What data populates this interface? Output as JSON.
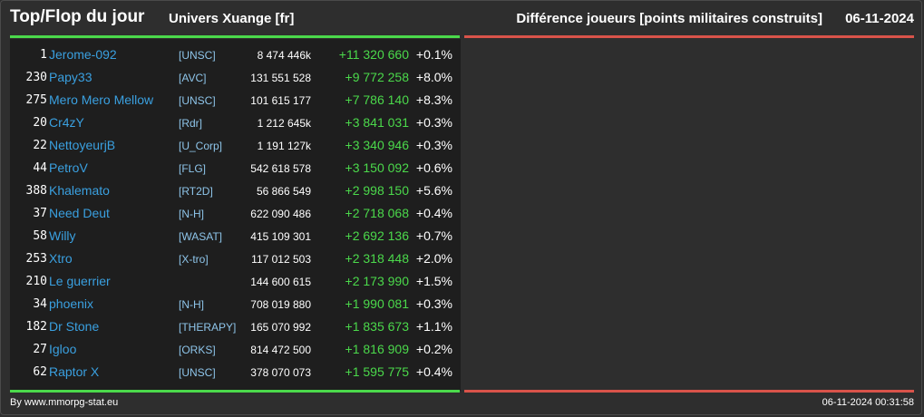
{
  "header": {
    "title": "Top/Flop du jour",
    "universe": "Univers Xuange [fr]",
    "metric": "Différence joueurs [points militaires construits]",
    "date": "06-11-2024"
  },
  "colors": {
    "background": "#2e2e2e",
    "panel": "#1e1e1e",
    "top_accent": "#4bd94b",
    "flop_accent": "#d9534a",
    "player_link": "#3aa0e0",
    "alliance_link": "#8ec5ea"
  },
  "top_rows": [
    {
      "rank": "1",
      "name": "Jerome-092",
      "alliance": "[UNSC]",
      "points": "8 474 446k",
      "delta": "+11 320 660",
      "pct": "+0.1%"
    },
    {
      "rank": "230",
      "name": "Papy33",
      "alliance": "[AVC]",
      "points": "131 551 528",
      "delta": "+9 772 258",
      "pct": "+8.0%"
    },
    {
      "rank": "275",
      "name": "Mero Mero Mellow",
      "alliance": "[UNSC]",
      "points": "101 615 177",
      "delta": "+7 786 140",
      "pct": "+8.3%"
    },
    {
      "rank": "20",
      "name": "Cr4zY",
      "alliance": "[Rdr]",
      "points": "1 212 645k",
      "delta": "+3 841 031",
      "pct": "+0.3%"
    },
    {
      "rank": "22",
      "name": "NettoyeurjB",
      "alliance": "[U_Corp]",
      "points": "1 191 127k",
      "delta": "+3 340 946",
      "pct": "+0.3%"
    },
    {
      "rank": "44",
      "name": "PetroV",
      "alliance": "[FLG]",
      "points": "542 618 578",
      "delta": "+3 150 092",
      "pct": "+0.6%"
    },
    {
      "rank": "388",
      "name": "Khalemato",
      "alliance": "[RT2D]",
      "points": "56 866 549",
      "delta": "+2 998 150",
      "pct": "+5.6%"
    },
    {
      "rank": "37",
      "name": "Need Deut",
      "alliance": "[N-H]",
      "points": "622 090 486",
      "delta": "+2 718 068",
      "pct": "+0.4%"
    },
    {
      "rank": "58",
      "name": "Willy",
      "alliance": "[WASAT]",
      "points": "415 109 301",
      "delta": "+2 692 136",
      "pct": "+0.7%"
    },
    {
      "rank": "253",
      "name": "Xtro",
      "alliance": "[X-tro]",
      "points": "117 012 503",
      "delta": "+2 318 448",
      "pct": "+2.0%"
    },
    {
      "rank": "210",
      "name": "Le guerrier",
      "alliance": "",
      "points": "144 600 615",
      "delta": "+2 173 990",
      "pct": "+1.5%"
    },
    {
      "rank": "34",
      "name": "phoenix",
      "alliance": "[N-H]",
      "points": "708 019 880",
      "delta": "+1 990 081",
      "pct": "+0.3%"
    },
    {
      "rank": "182",
      "name": "Dr Stone",
      "alliance": "[THERAPY]",
      "points": "165 070 992",
      "delta": "+1 835 673",
      "pct": "+1.1%"
    },
    {
      "rank": "27",
      "name": "Igloo",
      "alliance": "[ORKS]",
      "points": "814 472 500",
      "delta": "+1 816 909",
      "pct": "+0.2%"
    },
    {
      "rank": "62",
      "name": "Raptor X",
      "alliance": "[UNSC]",
      "points": "378 070 073",
      "delta": "+1 595 775",
      "pct": "+0.4%"
    }
  ],
  "footer": {
    "credit": "By www.mmorpg-stat.eu",
    "timestamp": "06-11-2024 00:31:58"
  }
}
